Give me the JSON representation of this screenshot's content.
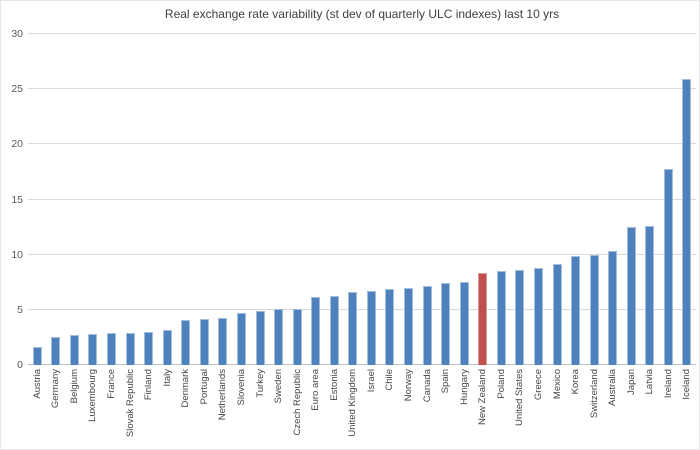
{
  "chart_data": {
    "type": "bar",
    "title": "Real exchange rate variability (st dev of quarterly ULC indexes) last 10 yrs",
    "categories": [
      "Austria",
      "Germany",
      "Belgium",
      "Luxembourg",
      "France",
      "Slovak Republic",
      "Finland",
      "Italy",
      "Denmark",
      "Portugal",
      "Netherlands",
      "Slovenia",
      "Turkey",
      "Sweden",
      "Czech Republic",
      "Euro area",
      "Estonia",
      "United Kingdom",
      "Israel",
      "Chile",
      "Norway",
      "Canada",
      "Spain",
      "Hungary",
      "New Zealand",
      "Poland",
      "United States",
      "Greece",
      "Mexico",
      "Korea",
      "Switzerland",
      "Australia",
      "Japan",
      "Latvia",
      "Ireland",
      "Iceland"
    ],
    "values": [
      1.6,
      2.5,
      2.7,
      2.8,
      2.9,
      2.9,
      3.0,
      3.2,
      4.1,
      4.2,
      4.3,
      4.7,
      4.9,
      5.1,
      5.1,
      6.2,
      6.3,
      6.6,
      6.7,
      6.9,
      7.0,
      7.2,
      7.4,
      7.5,
      8.3,
      8.5,
      8.6,
      8.8,
      9.2,
      9.9,
      10.0,
      10.3,
      12.5,
      12.6,
      17.8,
      25.9
    ],
    "highlight_category": "New Zealand",
    "xlabel": "",
    "ylabel": "",
    "ylim": [
      0,
      30
    ],
    "yticks": [
      0,
      5,
      10,
      15,
      20,
      25,
      30
    ],
    "grid": true,
    "legend": false,
    "colors": {
      "bar": "#4f81bd",
      "bar_border": "#a3bedc",
      "highlight": "#c0504d",
      "highlight_border": "#d79a98",
      "gridline": "#d9d9d9",
      "axis_line": "#bfbfbf",
      "axis_text": "#595959",
      "label_text": "#444444",
      "title_text": "#3f3f3f",
      "background": "#ffffff"
    }
  }
}
